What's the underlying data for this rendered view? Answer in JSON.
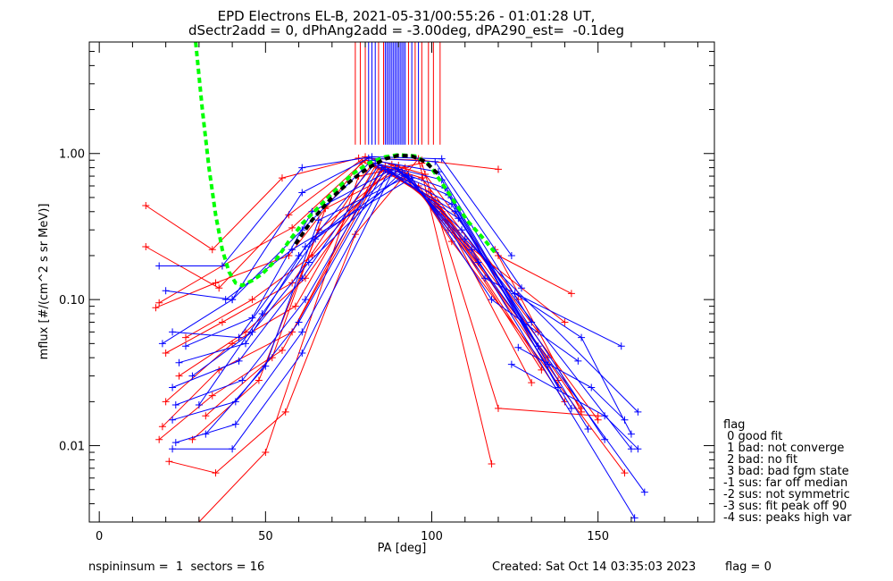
{
  "chart_data": {
    "type": "line",
    "title": "EPD Electrons EL-B, 2021-05-31/00:55:26 - 01:01:28 UT,",
    "subtitle": "dSectr2add = 0, dPhAng2add = -3.00deg, dPA290_est=  -0.1deg",
    "xlabel": "PA [deg]",
    "ylabel": "mflux [#/(cm^2 s sr MeV)]",
    "xlim": [
      -3,
      185
    ],
    "ylim": [
      0.003,
      5.8
    ],
    "y_scale": "log",
    "x_ticks": [
      0,
      50,
      100,
      150
    ],
    "x_tick_labels": [
      "0",
      "50",
      "100",
      "150"
    ],
    "y_ticks": [
      0.01,
      0.1,
      1.0
    ],
    "y_tick_labels": [
      "0.01",
      "0.10",
      "1.00"
    ],
    "grid": false,
    "series": [
      {
        "color": "#ff0000",
        "values": [
          [
            14,
            0.44
          ],
          [
            34,
            0.22
          ],
          [
            55,
            0.68
          ],
          [
            78,
            0.93
          ],
          [
            97,
            0.9
          ],
          [
            120,
            0.78
          ]
        ]
      },
      {
        "color": "#ff0000",
        "values": [
          [
            14,
            0.23
          ],
          [
            36,
            0.12
          ],
          [
            57,
            0.38
          ],
          [
            80,
            0.95
          ],
          [
            98,
            0.72
          ],
          [
            126,
            0.1
          ]
        ]
      },
      {
        "color": "#ff0000",
        "values": [
          [
            18,
            0.095
          ],
          [
            37,
            0.17
          ],
          [
            58,
            0.31
          ],
          [
            80,
            0.9
          ],
          [
            97,
            0.68
          ],
          [
            132,
            0.06
          ]
        ]
      },
      {
        "color": "#ff0000",
        "values": [
          [
            17,
            0.088
          ],
          [
            35,
            0.13
          ],
          [
            57,
            0.2
          ],
          [
            79,
            0.88
          ],
          [
            96,
            0.6
          ],
          [
            135,
            0.04
          ]
        ]
      },
      {
        "color": "#ff0000",
        "values": [
          [
            20,
            0.043
          ],
          [
            37,
            0.07
          ],
          [
            58,
            0.13
          ],
          [
            82,
            0.85
          ],
          [
            99,
            0.55
          ],
          [
            138,
            0.028
          ]
        ]
      },
      {
        "color": "#ff0000",
        "values": [
          [
            20,
            0.02
          ],
          [
            40,
            0.05
          ],
          [
            59,
            0.09
          ],
          [
            83,
            0.82
          ],
          [
            100,
            0.5
          ],
          [
            140,
            0.02
          ]
        ]
      },
      {
        "color": "#ff0000",
        "values": [
          [
            19,
            0.0135
          ],
          [
            36,
            0.033
          ],
          [
            58,
            0.06
          ],
          [
            84,
            0.8
          ],
          [
            101,
            0.48
          ],
          [
            145,
            0.018
          ]
        ]
      },
      {
        "color": "#ff0000",
        "values": [
          [
            18,
            0.011
          ],
          [
            34,
            0.022
          ],
          [
            55,
            0.045
          ],
          [
            85,
            0.78
          ],
          [
            102,
            0.45
          ],
          [
            150,
            0.015
          ]
        ]
      },
      {
        "color": "#ff0000",
        "values": [
          [
            21,
            0.0078
          ],
          [
            35,
            0.0065
          ],
          [
            56,
            0.017
          ],
          [
            77,
            0.28
          ],
          [
            96,
            0.92
          ],
          [
            118,
            0.0075
          ]
        ]
      },
      {
        "color": "#ff0000",
        "values": [
          [
            30,
            0.003
          ],
          [
            50,
            0.009
          ],
          [
            78,
            0.7
          ],
          [
            97,
            0.86
          ],
          [
            120,
            0.018
          ],
          [
            150,
            0.016
          ]
        ]
      },
      {
        "color": "#ff0000",
        "values": [
          [
            24,
            0.03
          ],
          [
            44,
            0.06
          ],
          [
            62,
            0.14
          ],
          [
            86,
            0.82
          ],
          [
            103,
            0.4
          ],
          [
            130,
            0.027
          ]
        ]
      },
      {
        "color": "#ff0000",
        "values": [
          [
            26,
            0.055
          ],
          [
            46,
            0.1
          ],
          [
            64,
            0.2
          ],
          [
            88,
            0.84
          ],
          [
            104,
            0.35
          ],
          [
            133,
            0.033
          ]
        ]
      },
      {
        "color": "#ff0000",
        "values": [
          [
            28,
            0.011
          ],
          [
            48,
            0.028
          ],
          [
            66,
            0.3
          ],
          [
            90,
            0.83
          ],
          [
            105,
            0.3
          ],
          [
            140,
            0.07
          ]
        ]
      },
      {
        "color": "#ff0000",
        "values": [
          [
            32,
            0.016
          ],
          [
            52,
            0.04
          ],
          [
            68,
            0.42
          ],
          [
            92,
            0.8
          ],
          [
            106,
            0.25
          ],
          [
            158,
            0.0065
          ]
        ]
      },
      {
        "color": "#ff0000",
        "values": [
          [
            120,
            0.2
          ],
          [
            142,
            0.11
          ]
        ]
      },
      {
        "color": "#ff0000",
        "values": [
          [
            119,
            0.22
          ],
          [
            145,
            0.017
          ]
        ]
      },
      {
        "color": "#0000ff",
        "values": [
          [
            18,
            0.17
          ],
          [
            37,
            0.17
          ],
          [
            61,
            0.8
          ],
          [
            82,
            0.95
          ],
          [
            103,
            0.92
          ],
          [
            124,
            0.2
          ]
        ]
      },
      {
        "color": "#0000ff",
        "values": [
          [
            20,
            0.115
          ],
          [
            40,
            0.1
          ],
          [
            61,
            0.54
          ],
          [
            81,
            0.93
          ],
          [
            101,
            0.88
          ],
          [
            127,
            0.12
          ]
        ]
      },
      {
        "color": "#0000ff",
        "values": [
          [
            19,
            0.05
          ],
          [
            40,
            0.1
          ],
          [
            61,
            0.3
          ],
          [
            82,
            0.9
          ],
          [
            102,
            0.75
          ],
          [
            130,
            0.07
          ]
        ]
      },
      {
        "color": "#0000ff",
        "values": [
          [
            22,
            0.06
          ],
          [
            42,
            0.055
          ],
          [
            60,
            0.2
          ],
          [
            83,
            0.86
          ],
          [
            103,
            0.66
          ],
          [
            132,
            0.048
          ]
        ]
      },
      {
        "color": "#0000ff",
        "values": [
          [
            22,
            0.025
          ],
          [
            42,
            0.038
          ],
          [
            61,
            0.14
          ],
          [
            84,
            0.83
          ],
          [
            104,
            0.58
          ],
          [
            135,
            0.036
          ]
        ]
      },
      {
        "color": "#0000ff",
        "values": [
          [
            23,
            0.019
          ],
          [
            43,
            0.028
          ],
          [
            62,
            0.1
          ],
          [
            85,
            0.8
          ],
          [
            105,
            0.52
          ],
          [
            138,
            0.025
          ]
        ]
      },
      {
        "color": "#0000ff",
        "values": [
          [
            22,
            0.015
          ],
          [
            41,
            0.02
          ],
          [
            60,
            0.07
          ],
          [
            86,
            0.78
          ],
          [
            106,
            0.45
          ],
          [
            142,
            0.018
          ]
        ]
      },
      {
        "color": "#0000ff",
        "values": [
          [
            23,
            0.0105
          ],
          [
            41,
            0.014
          ],
          [
            61,
            0.06
          ],
          [
            87,
            0.75
          ],
          [
            107,
            0.4
          ],
          [
            147,
            0.013
          ]
        ]
      },
      {
        "color": "#0000ff",
        "values": [
          [
            22,
            0.0095
          ],
          [
            40,
            0.0095
          ],
          [
            61,
            0.043
          ],
          [
            88,
            0.73
          ],
          [
            108,
            0.36
          ],
          [
            152,
            0.011
          ]
        ]
      },
      {
        "color": "#0000ff",
        "values": [
          [
            26,
            0.048
          ],
          [
            46,
            0.075
          ],
          [
            64,
            0.4
          ],
          [
            89,
            0.8
          ],
          [
            109,
            0.3
          ],
          [
            160,
            0.0095
          ]
        ]
      },
      {
        "color": "#0000ff",
        "values": [
          [
            24,
            0.037
          ],
          [
            44,
            0.05
          ],
          [
            62,
            0.23
          ],
          [
            90,
            0.78
          ],
          [
            110,
            0.26
          ],
          [
            162,
            0.017
          ]
        ]
      },
      {
        "color": "#0000ff",
        "values": [
          [
            28,
            0.03
          ],
          [
            46,
            0.06
          ],
          [
            63,
            0.18
          ],
          [
            91,
            0.75
          ],
          [
            112,
            0.22
          ],
          [
            161,
            0.0032
          ]
        ]
      },
      {
        "color": "#0000ff",
        "values": [
          [
            30,
            0.019
          ],
          [
            49,
            0.08
          ],
          [
            65,
            0.26
          ],
          [
            92,
            0.72
          ],
          [
            114,
            0.18
          ],
          [
            164,
            0.0048
          ]
        ]
      },
      {
        "color": "#0000ff",
        "values": [
          [
            32,
            0.012
          ],
          [
            50,
            0.035
          ],
          [
            66,
            0.35
          ],
          [
            93,
            0.7
          ],
          [
            116,
            0.14
          ],
          [
            157,
            0.048
          ]
        ]
      },
      {
        "color": "#0000ff",
        "values": [
          [
            38,
            0.1
          ],
          [
            58,
            0.22
          ],
          [
            94,
            0.68
          ],
          [
            118,
            0.1
          ],
          [
            144,
            0.038
          ]
        ]
      },
      {
        "color": "#0000ff",
        "values": [
          [
            124,
            0.036
          ],
          [
            152,
            0.016
          ],
          [
            162,
            0.0095
          ]
        ]
      },
      {
        "color": "#0000ff",
        "values": [
          [
            125,
            0.11
          ],
          [
            145,
            0.055
          ],
          [
            160,
            0.012
          ]
        ]
      },
      {
        "color": "#0000ff",
        "values": [
          [
            126,
            0.047
          ],
          [
            148,
            0.025
          ],
          [
            158,
            0.015
          ]
        ]
      },
      {
        "color": "#00ff00",
        "dashed": true,
        "values": [
          [
            29,
            5.8
          ],
          [
            31,
            2.0
          ],
          [
            33,
            0.8
          ],
          [
            35,
            0.38
          ],
          [
            37,
            0.22
          ],
          [
            39,
            0.155
          ],
          [
            41,
            0.13
          ],
          [
            43,
            0.125
          ],
          [
            46,
            0.135
          ],
          [
            49,
            0.15
          ],
          [
            53,
            0.185
          ],
          [
            57,
            0.25
          ],
          [
            61,
            0.33
          ],
          [
            66,
            0.43
          ],
          [
            71,
            0.56
          ],
          [
            76,
            0.72
          ],
          [
            81,
            0.86
          ],
          [
            86,
            0.95
          ],
          [
            90,
            0.98
          ],
          [
            95,
            0.96
          ],
          [
            99,
            0.85
          ],
          [
            103,
            0.63
          ],
          [
            107,
            0.46
          ],
          [
            111,
            0.34
          ],
          [
            115,
            0.27
          ],
          [
            119,
            0.21
          ]
        ]
      },
      {
        "color": "#000000",
        "dashed": true,
        "values": [
          [
            59,
            0.24
          ],
          [
            64,
            0.35
          ],
          [
            70,
            0.5
          ],
          [
            76,
            0.66
          ],
          [
            81,
            0.8
          ],
          [
            86,
            0.92
          ],
          [
            90,
            0.97
          ],
          [
            94,
            0.96
          ],
          [
            98,
            0.88
          ],
          [
            102,
            0.72
          ]
        ]
      }
    ],
    "vlines_red": [
      77,
      78.5,
      80,
      84,
      85.5,
      93,
      95,
      97,
      99,
      100.5,
      102.5
    ],
    "vlines_blue": [
      81,
      82,
      83,
      86,
      86.5,
      87,
      87.5,
      88,
      88.5,
      89,
      89.5,
      90,
      90.5,
      91,
      91.5,
      92,
      94,
      96
    ],
    "vline_ymin": 1.15
  },
  "legend": {
    "header": "flag",
    "items": [
      " 0 good fit",
      " 1 bad: not converge",
      " 2 bad: no fit",
      " 3 bad: bad fgm state",
      "-1 sus: far off median",
      "-2 sus: not symmetric",
      "-3 sus: fit peak off 90",
      "-4 sus: peaks high var"
    ]
  },
  "footer": {
    "left": "nspininsum =  1  sectors = 16",
    "created": "Created: Sat Oct 14 03:35:03 2023",
    "flag": "flag = 0"
  }
}
